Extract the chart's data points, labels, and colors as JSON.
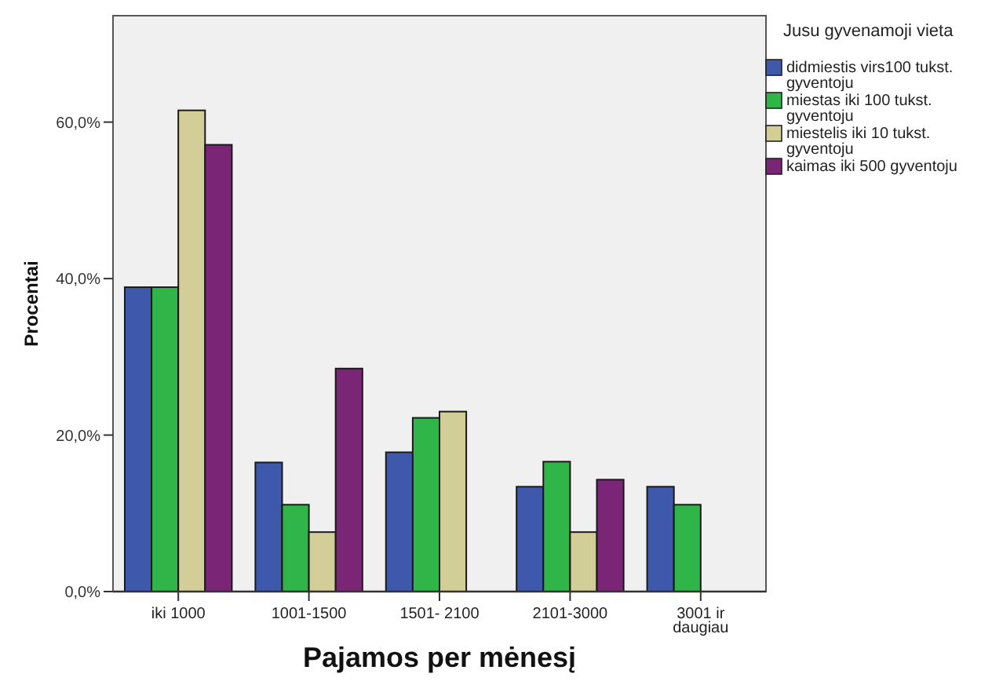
{
  "chart_data": {
    "type": "bar",
    "xlabel": "Pajamos per mėnesį",
    "ylabel": "Procentai",
    "legend_title": "Jusu gyvenamoji vieta",
    "categories": [
      "iki 1000",
      "1001-1500",
      "1501- 2100",
      "2101-3000",
      "3001  ir\ndaugiau"
    ],
    "series": [
      {
        "name": "didmiestis virs100 tukst. gyventoju",
        "color": "#3e58ac",
        "values": [
          38.9,
          16.5,
          17.8,
          13.4,
          13.4
        ]
      },
      {
        "name": "miestas iki 100 tukst. gyventoju",
        "color": "#2fb548",
        "values": [
          38.9,
          11.1,
          22.2,
          16.6,
          11.1
        ]
      },
      {
        "name": "miestelis iki 10 tukst. gyventoju",
        "color": "#d3ce97",
        "values": [
          61.5,
          7.6,
          23.0,
          7.6,
          0
        ]
      },
      {
        "name": "kaimas iki 500 gyventoju",
        "color": "#7b2577",
        "values": [
          57.1,
          28.5,
          0,
          14.3,
          0
        ]
      }
    ],
    "ylim": [
      0,
      73.6
    ],
    "yticks": [
      {
        "value": 0,
        "label": "0,0%"
      },
      {
        "value": 20,
        "label": "20,0%"
      },
      {
        "value": 40,
        "label": "40,0%"
      },
      {
        "value": 60,
        "label": "60,0%"
      }
    ],
    "grid": false,
    "legend": "right"
  }
}
